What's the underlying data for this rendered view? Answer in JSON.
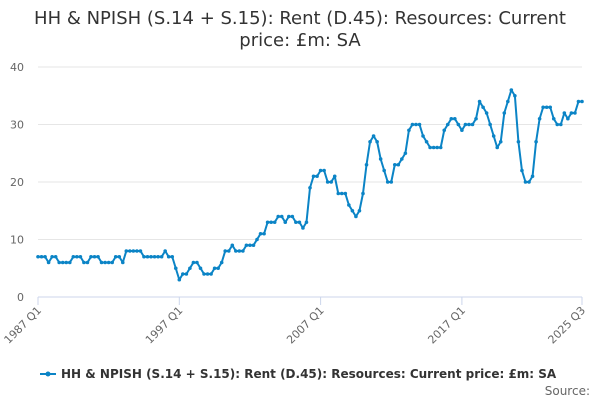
{
  "chart_data": {
    "type": "line",
    "title_line1": "HH & NPISH (S.14 + S.15): Rent (D.45): Resources: Current",
    "title_line2": "price: £m: SA",
    "xlabel": "",
    "ylabel": "",
    "ylim": [
      0,
      40
    ],
    "yticks": [
      "0",
      "10",
      "20",
      "30",
      "40"
    ],
    "xticks": [
      "1987 Q1",
      "1997 Q1",
      "2007 Q1",
      "2017 Q1",
      "2025 Q3"
    ],
    "grid": true,
    "legend_position": "bottom",
    "credits": "Source:",
    "color": "#0b84c6",
    "series": [
      {
        "name": "HH & NPISH (S.14 + S.15): Rent (D.45): Resources: Current price: £m: SA",
        "x": [
          "1987 Q1",
          "1987 Q2",
          "1987 Q3",
          "1987 Q4",
          "1988 Q1",
          "1988 Q2",
          "1988 Q3",
          "1988 Q4",
          "1989 Q1",
          "1989 Q2",
          "1989 Q3",
          "1989 Q4",
          "1990 Q1",
          "1990 Q2",
          "1990 Q3",
          "1990 Q4",
          "1991 Q1",
          "1991 Q2",
          "1991 Q3",
          "1991 Q4",
          "1992 Q1",
          "1992 Q2",
          "1992 Q3",
          "1992 Q4",
          "1993 Q1",
          "1993 Q2",
          "1993 Q3",
          "1993 Q4",
          "1994 Q1",
          "1994 Q2",
          "1994 Q3",
          "1994 Q4",
          "1995 Q1",
          "1995 Q2",
          "1995 Q3",
          "1995 Q4",
          "1996 Q1",
          "1996 Q2",
          "1996 Q3",
          "1996 Q4",
          "1997 Q1",
          "1997 Q2",
          "1997 Q3",
          "1997 Q4",
          "1998 Q1",
          "1998 Q2",
          "1998 Q3",
          "1998 Q4",
          "1999 Q1",
          "1999 Q2",
          "1999 Q3",
          "1999 Q4",
          "2000 Q1",
          "2000 Q2",
          "2000 Q3",
          "2000 Q4",
          "2001 Q1",
          "2001 Q2",
          "2001 Q3",
          "2001 Q4",
          "2002 Q1",
          "2002 Q2",
          "2002 Q3",
          "2002 Q4",
          "2003 Q1",
          "2003 Q2",
          "2003 Q3",
          "2003 Q4",
          "2004 Q1",
          "2004 Q2",
          "2004 Q3",
          "2004 Q4",
          "2005 Q1",
          "2005 Q2",
          "2005 Q3",
          "2005 Q4",
          "2006 Q1",
          "2006 Q2",
          "2006 Q3",
          "2006 Q4",
          "2007 Q1",
          "2007 Q2",
          "2007 Q3",
          "2007 Q4",
          "2008 Q1",
          "2008 Q2",
          "2008 Q3",
          "2008 Q4",
          "2009 Q1",
          "2009 Q2",
          "2009 Q3",
          "2009 Q4",
          "2010 Q1",
          "2010 Q2",
          "2010 Q3",
          "2010 Q4",
          "2011 Q1",
          "2011 Q2",
          "2011 Q3",
          "2011 Q4",
          "2012 Q1",
          "2012 Q2",
          "2012 Q3",
          "2012 Q4",
          "2013 Q1",
          "2013 Q2",
          "2013 Q3",
          "2013 Q4",
          "2014 Q1",
          "2014 Q2",
          "2014 Q3",
          "2014 Q4",
          "2015 Q1",
          "2015 Q2",
          "2015 Q3",
          "2015 Q4",
          "2016 Q1",
          "2016 Q2",
          "2016 Q3",
          "2016 Q4",
          "2017 Q1",
          "2017 Q2",
          "2017 Q3",
          "2017 Q4",
          "2018 Q1",
          "2018 Q2",
          "2018 Q3",
          "2018 Q4",
          "2019 Q1",
          "2019 Q2",
          "2019 Q3",
          "2019 Q4",
          "2020 Q1",
          "2020 Q2",
          "2020 Q3",
          "2020 Q4",
          "2021 Q1",
          "2021 Q2",
          "2021 Q3",
          "2021 Q4",
          "2022 Q1",
          "2022 Q2",
          "2022 Q3",
          "2022 Q4",
          "2023 Q1",
          "2023 Q2",
          "2023 Q3",
          "2023 Q4",
          "2024 Q1",
          "2024 Q2",
          "2024 Q3",
          "2024 Q4",
          "2025 Q1",
          "2025 Q2",
          "2025 Q3"
        ],
        "values": [
          7,
          7,
          7,
          6,
          7,
          7,
          6,
          6,
          6,
          6,
          7,
          7,
          7,
          6,
          6,
          7,
          7,
          7,
          6,
          6,
          6,
          6,
          7,
          7,
          6,
          8,
          8,
          8,
          8,
          8,
          7,
          7,
          7,
          7,
          7,
          7,
          8,
          7,
          7,
          5,
          3,
          4,
          4,
          5,
          6,
          6,
          5,
          4,
          4,
          4,
          5,
          5,
          6,
          8,
          8,
          9,
          8,
          8,
          8,
          9,
          9,
          9,
          10,
          11,
          11,
          13,
          13,
          13,
          14,
          14,
          13,
          14,
          14,
          13,
          13,
          12,
          13,
          19,
          21,
          21,
          22,
          22,
          20,
          20,
          21,
          18,
          18,
          18,
          16,
          15,
          14,
          15,
          18,
          23,
          27,
          28,
          27,
          24,
          22,
          20,
          20,
          23,
          23,
          24,
          25,
          29,
          30,
          30,
          30,
          28,
          27,
          26,
          26,
          26,
          26,
          29,
          30,
          31,
          31,
          30,
          29,
          30,
          30,
          30,
          31,
          34,
          33,
          32,
          30,
          28,
          26,
          27,
          32,
          34,
          36,
          35,
          27,
          22,
          20,
          20,
          21,
          27,
          31,
          33,
          33,
          33,
          31,
          30,
          30,
          32,
          31,
          32,
          32,
          34,
          34
        ]
      }
    ]
  }
}
